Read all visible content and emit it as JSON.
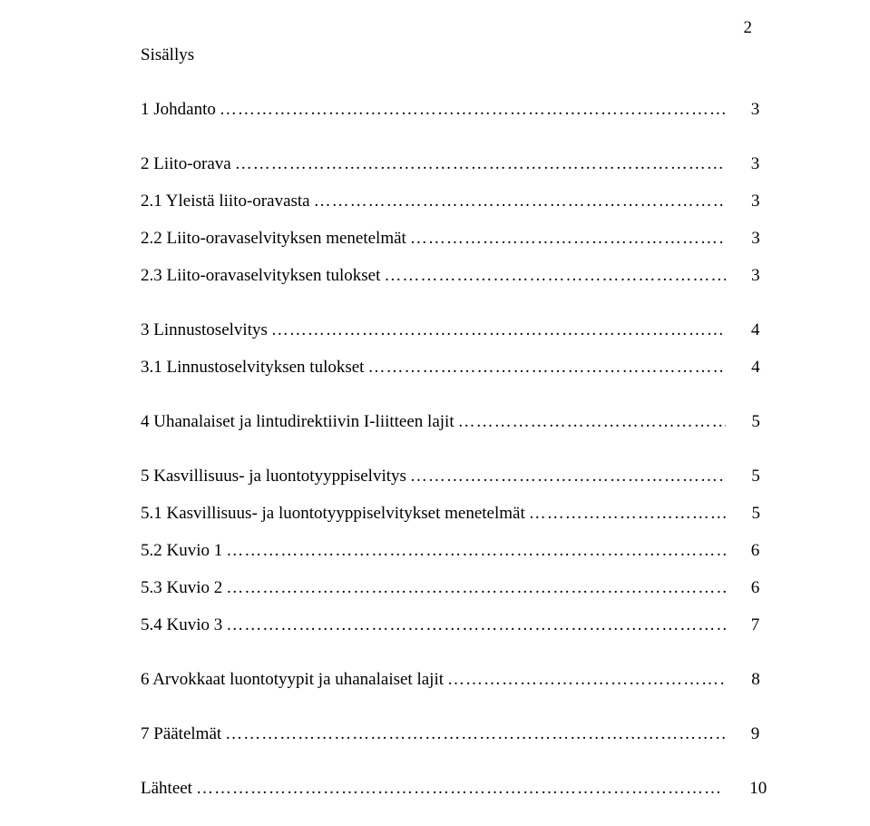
{
  "page_number": "2",
  "title": "Sisällys",
  "leader_char": "…",
  "entries": [
    {
      "label": "1 Johdanto",
      "trailing": "..",
      "page": "3",
      "gap_after": true
    },
    {
      "label": "2 Liito-orava",
      "trailing": ".",
      "page": "3",
      "gap_after": false
    },
    {
      "label": "2.1 Yleistä liito-oravasta",
      "trailing": ".",
      "page": "3",
      "gap_after": false
    },
    {
      "label": "2.2 Liito-oravaselvityksen menetelmät",
      "trailing": "..",
      "page": "3",
      "gap_after": false
    },
    {
      "label": "2.3 Liito-oravaselvityksen tulokset",
      "trailing": ".",
      "page": "3",
      "gap_after": true
    },
    {
      "label": "3 Linnustoselvitys",
      "trailing": "...",
      "page": "4",
      "gap_after": false
    },
    {
      "label": "3.1 Linnustoselvityksen tulokset",
      "trailing": ".. …",
      "page": "4",
      "gap_after": true
    },
    {
      "label": "4 Uhanalaiset ja lintudirektiivin I-liitteen lajit",
      "trailing": ".",
      "page": "5",
      "gap_after": true
    },
    {
      "label": "5 Kasvillisuus- ja luontotyyppiselvitys",
      "trailing": ".",
      "page": "5",
      "gap_after": false
    },
    {
      "label": "5.1 Kasvillisuus- ja luontotyyppiselvitykset menetelmät",
      "trailing": ".",
      "page": "5",
      "gap_after": false
    },
    {
      "label": "5.2 Kuvio 1",
      "trailing": ".",
      "page": "6",
      "gap_after": false
    },
    {
      "label": "5.3 Kuvio 2",
      "trailing": ".",
      "page": "6",
      "gap_after": false
    },
    {
      "label": "5.4 Kuvio 3",
      "trailing": ".",
      "page": "7",
      "gap_after": true
    },
    {
      "label": "6 Arvokkaat luontotyypit ja uhanalaiset lajit",
      "trailing": ".",
      "page": "8",
      "gap_after": true
    },
    {
      "label": "7 Päätelmät",
      "trailing": ".",
      "page": "9",
      "gap_after": true
    },
    {
      "label": "Lähteet",
      "trailing": "..",
      "page": "10",
      "gap_after": false
    }
  ]
}
